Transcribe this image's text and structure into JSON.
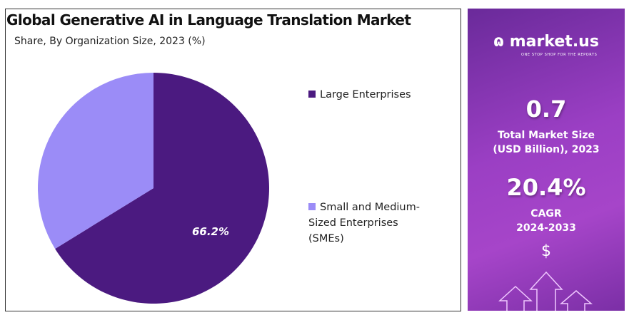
{
  "chart_data": {
    "type": "pie",
    "title": "Global Generative AI in Language Translation Market",
    "subtitle": "Share, By Organization Size, 2023 (%)",
    "categories": [
      "Large Enterprises",
      "Small and Medium-Sized Enterprises (SMEs)"
    ],
    "values": [
      66.2,
      33.8
    ],
    "data_labels": [
      "66.2%",
      ""
    ],
    "colors": [
      "#4b1a80",
      "#9b8cf7"
    ],
    "legend_position": "right",
    "legend": [
      "Large Enterprises",
      "Small and Medium-",
      "Sized Enterprises",
      "(SMEs)"
    ]
  },
  "sidebar": {
    "brand": "market.us",
    "tagline": "ONE STOP SHOP FOR THE REPORTS",
    "market_size_value": "0.7",
    "market_size_label_1": "Total Market Size",
    "market_size_label_2": "(USD Billion), 2023",
    "cagr_value": "20.4%",
    "cagr_label_1": "CAGR",
    "cagr_label_2": "2024-2033",
    "dollar_symbol": "$"
  }
}
